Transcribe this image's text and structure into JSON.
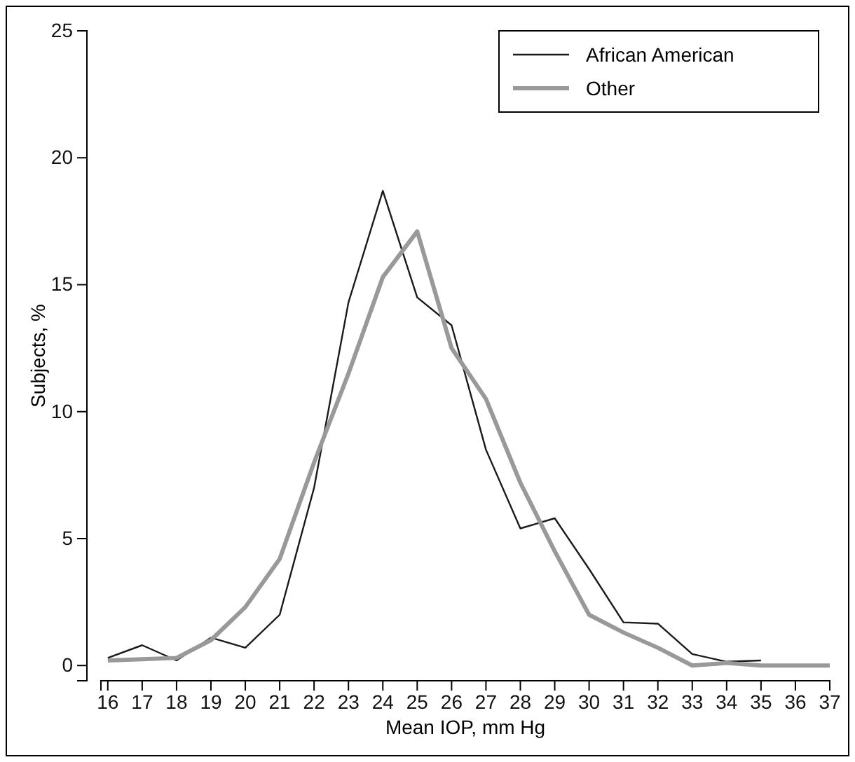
{
  "chart_data": {
    "type": "line",
    "xlabel": "Mean IOP, mm Hg",
    "ylabel": "Subjects, %",
    "xlim": [
      15.8,
      37
    ],
    "xticks": [
      16,
      17,
      18,
      19,
      20,
      21,
      22,
      23,
      24,
      25,
      26,
      27,
      28,
      29,
      30,
      31,
      32,
      33,
      34,
      35,
      36,
      37
    ],
    "ylim": [
      -0.6,
      25
    ],
    "yticks": [
      0,
      5,
      10,
      15,
      20,
      25
    ],
    "legend": "top right",
    "grid": false,
    "marker": "none",
    "series": [
      {
        "name": "African American",
        "color": "#1a1a1a",
        "x": [
          16,
          17,
          18,
          19,
          20,
          21,
          22,
          23,
          24,
          25,
          26,
          27,
          28,
          29,
          30,
          31,
          32,
          33,
          34,
          35
        ],
        "values": [
          0.3,
          0.8,
          0.2,
          1.1,
          0.7,
          2.0,
          7.0,
          14.3,
          18.7,
          14.5,
          13.4,
          8.5,
          5.4,
          5.8,
          3.8,
          1.7,
          1.65,
          0.45,
          0.15,
          0.2
        ]
      },
      {
        "name": "Other",
        "color": "#999999",
        "x": [
          16,
          17,
          18,
          19,
          20,
          21,
          22,
          23,
          24,
          25,
          26,
          27,
          28,
          29,
          30,
          31,
          32,
          33,
          34,
          35,
          36,
          37
        ],
        "values": [
          0.2,
          0.25,
          0.3,
          1.0,
          2.3,
          4.2,
          8.0,
          11.5,
          15.3,
          17.1,
          12.5,
          10.5,
          7.2,
          4.5,
          2.0,
          1.3,
          0.7,
          0,
          0.1,
          0,
          0,
          0
        ]
      }
    ]
  }
}
